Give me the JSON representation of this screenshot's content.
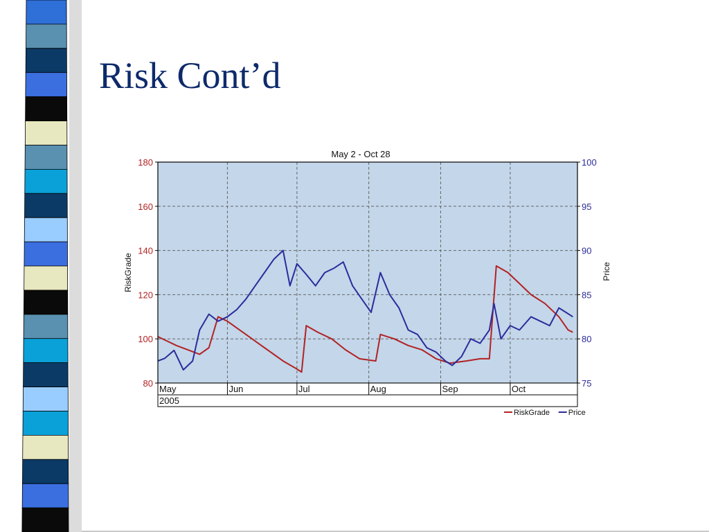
{
  "slide": {
    "title": "Risk Cont’d"
  },
  "decoration": {
    "stripe_colors": [
      "#2e6fd8",
      "#5a90b0",
      "#0b3a66",
      "#3b6fe0",
      "#0a0a0a",
      "#e8e8c0",
      "#5a90b0",
      "#0aa0d8",
      "#0b3a66",
      "#99ccff",
      "#3b6fe0",
      "#e8e8c0",
      "#0a0a0a",
      "#5a90b0",
      "#0aa0d8",
      "#0b3a66",
      "#99ccff",
      "#0aa0d8",
      "#e8e8c0",
      "#0b3a66",
      "#3b6fe0",
      "#0a0a0a"
    ]
  },
  "chart_data": {
    "type": "line",
    "title": "May  2  -  Oct 28",
    "x_months": [
      "May",
      "Jun",
      "Jul",
      "Aug",
      "Sep",
      "Oct"
    ],
    "x_year": "2005",
    "y_left": {
      "label": "RiskGrade",
      "ticks": [
        80,
        100,
        120,
        140,
        160,
        180
      ],
      "range": [
        80,
        180
      ],
      "color": "#b22222"
    },
    "y_right": {
      "label": "Price",
      "ticks": [
        75,
        80,
        85,
        90,
        95,
        100
      ],
      "range": [
        75,
        100
      ],
      "color": "#2b2b9b"
    },
    "grid": true,
    "legend_position": "bottom-right",
    "plot_background": "#c3d6ea",
    "series": [
      {
        "name": "RiskGrade",
        "axis": "left",
        "color": "#b22222",
        "points": [
          [
            "2005-05-02",
            101
          ],
          [
            "2005-05-06",
            99
          ],
          [
            "2005-05-10",
            97
          ],
          [
            "2005-05-15",
            95
          ],
          [
            "2005-05-20",
            93
          ],
          [
            "2005-05-24",
            96
          ],
          [
            "2005-05-28",
            110
          ],
          [
            "2005-06-01",
            108
          ],
          [
            "2005-06-05",
            105
          ],
          [
            "2005-06-09",
            102
          ],
          [
            "2005-06-13",
            99
          ],
          [
            "2005-06-17",
            96
          ],
          [
            "2005-06-21",
            93
          ],
          [
            "2005-06-25",
            90
          ],
          [
            "2005-06-30",
            87
          ],
          [
            "2005-07-03",
            85
          ],
          [
            "2005-07-05",
            106
          ],
          [
            "2005-07-10",
            103
          ],
          [
            "2005-07-16",
            100
          ],
          [
            "2005-07-22",
            95
          ],
          [
            "2005-07-28",
            91
          ],
          [
            "2005-08-04",
            90
          ],
          [
            "2005-08-06",
            102
          ],
          [
            "2005-08-12",
            100
          ],
          [
            "2005-08-18",
            97
          ],
          [
            "2005-08-24",
            95
          ],
          [
            "2005-08-30",
            91
          ],
          [
            "2005-09-05",
            89
          ],
          [
            "2005-09-12",
            90
          ],
          [
            "2005-09-18",
            91
          ],
          [
            "2005-09-22",
            91
          ],
          [
            "2005-09-25",
            133
          ],
          [
            "2005-09-30",
            130
          ],
          [
            "2005-10-05",
            125
          ],
          [
            "2005-10-10",
            120
          ],
          [
            "2005-10-16",
            116
          ],
          [
            "2005-10-22",
            110
          ],
          [
            "2005-10-26",
            104
          ],
          [
            "2005-10-28",
            103
          ]
        ]
      },
      {
        "name": "Price",
        "axis": "right",
        "color": "#2b2b9b",
        "points": [
          [
            "2005-05-02",
            77.5
          ],
          [
            "2005-05-05",
            77.8
          ],
          [
            "2005-05-09",
            78.7
          ],
          [
            "2005-05-13",
            76.5
          ],
          [
            "2005-05-17",
            77.5
          ],
          [
            "2005-05-20",
            81.0
          ],
          [
            "2005-05-24",
            82.8
          ],
          [
            "2005-05-28",
            82.0
          ],
          [
            "2005-06-01",
            82.5
          ],
          [
            "2005-06-05",
            83.3
          ],
          [
            "2005-06-09",
            84.5
          ],
          [
            "2005-06-13",
            86.0
          ],
          [
            "2005-06-17",
            87.5
          ],
          [
            "2005-06-21",
            89.0
          ],
          [
            "2005-06-25",
            90.0
          ],
          [
            "2005-06-28",
            86.0
          ],
          [
            "2005-07-01",
            88.5
          ],
          [
            "2005-07-05",
            87.3
          ],
          [
            "2005-07-09",
            86.0
          ],
          [
            "2005-07-13",
            87.5
          ],
          [
            "2005-07-17",
            88.0
          ],
          [
            "2005-07-21",
            88.7
          ],
          [
            "2005-07-25",
            86.0
          ],
          [
            "2005-07-29",
            84.5
          ],
          [
            "2005-08-02",
            83.0
          ],
          [
            "2005-08-06",
            87.5
          ],
          [
            "2005-08-10",
            85.0
          ],
          [
            "2005-08-14",
            83.5
          ],
          [
            "2005-08-18",
            81.0
          ],
          [
            "2005-08-22",
            80.5
          ],
          [
            "2005-08-26",
            79.0
          ],
          [
            "2005-08-30",
            78.5
          ],
          [
            "2005-09-03",
            77.5
          ],
          [
            "2005-09-06",
            77.0
          ],
          [
            "2005-09-10",
            78.0
          ],
          [
            "2005-09-14",
            80.0
          ],
          [
            "2005-09-18",
            79.5
          ],
          [
            "2005-09-22",
            81.0
          ],
          [
            "2005-09-24",
            84.0
          ],
          [
            "2005-09-27",
            80.0
          ],
          [
            "2005-10-01",
            81.5
          ],
          [
            "2005-10-05",
            81.0
          ],
          [
            "2005-10-10",
            82.5
          ],
          [
            "2005-10-14",
            82.0
          ],
          [
            "2005-10-18",
            81.5
          ],
          [
            "2005-10-22",
            83.5
          ],
          [
            "2005-10-25",
            83.0
          ],
          [
            "2005-10-28",
            82.5
          ]
        ]
      }
    ]
  }
}
